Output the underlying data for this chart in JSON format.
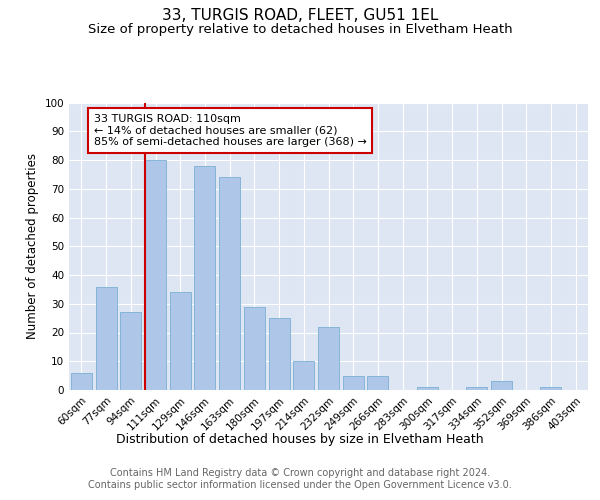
{
  "title1": "33, TURGIS ROAD, FLEET, GU51 1EL",
  "title2": "Size of property relative to detached houses in Elvetham Heath",
  "xlabel": "Distribution of detached houses by size in Elvetham Heath",
  "ylabel": "Number of detached properties",
  "categories": [
    "60sqm",
    "77sqm",
    "94sqm",
    "111sqm",
    "129sqm",
    "146sqm",
    "163sqm",
    "180sqm",
    "197sqm",
    "214sqm",
    "232sqm",
    "249sqm",
    "266sqm",
    "283sqm",
    "300sqm",
    "317sqm",
    "334sqm",
    "352sqm",
    "369sqm",
    "386sqm",
    "403sqm"
  ],
  "values": [
    6,
    36,
    27,
    80,
    34,
    78,
    74,
    29,
    25,
    10,
    22,
    5,
    5,
    0,
    1,
    0,
    1,
    3,
    0,
    1,
    0
  ],
  "bar_color": "#aec6e8",
  "bar_edge_color": "#7aafd4",
  "vline_x_index": 3,
  "vline_color": "#cc0000",
  "annotation_text": "33 TURGIS ROAD: 110sqm\n← 14% of detached houses are smaller (62)\n85% of semi-detached houses are larger (368) →",
  "annotation_box_color": "#ffffff",
  "annotation_box_edge": "#cc0000",
  "ylim": [
    0,
    100
  ],
  "yticks": [
    0,
    10,
    20,
    30,
    40,
    50,
    60,
    70,
    80,
    90,
    100
  ],
  "background_color": "#dde6f2",
  "footer_text": "Contains HM Land Registry data © Crown copyright and database right 2024.\nContains public sector information licensed under the Open Government Licence v3.0.",
  "title1_fontsize": 11,
  "title2_fontsize": 9.5,
  "xlabel_fontsize": 9,
  "ylabel_fontsize": 8.5,
  "tick_fontsize": 7.5,
  "footer_fontsize": 7,
  "annotation_fontsize": 8
}
